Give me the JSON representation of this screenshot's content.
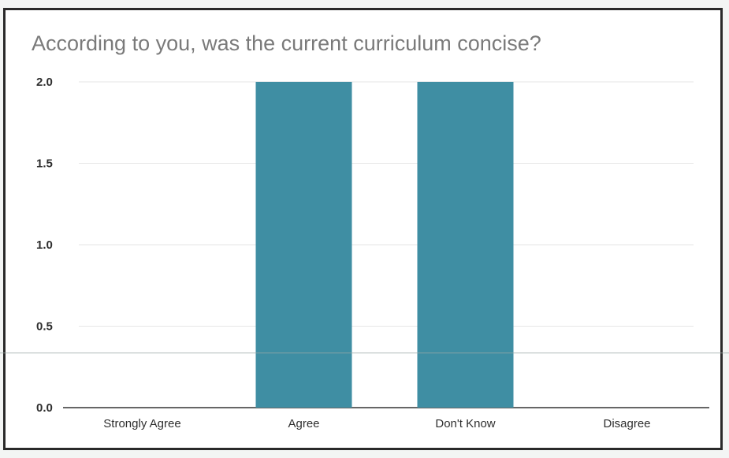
{
  "chart_data": {
    "type": "bar",
    "title": "According to you, was the current curriculum concise?",
    "categories": [
      "Strongly Agree",
      "Agree",
      "Don't Know",
      "Disagree"
    ],
    "values": [
      0,
      2,
      2,
      0
    ],
    "ylim": [
      0,
      2
    ],
    "yticks": [
      "0.0",
      "0.5",
      "1.0",
      "1.5",
      "2.0"
    ],
    "xlabel": "",
    "ylabel": "",
    "grid": true,
    "bar_color": "#3f8ea3"
  }
}
